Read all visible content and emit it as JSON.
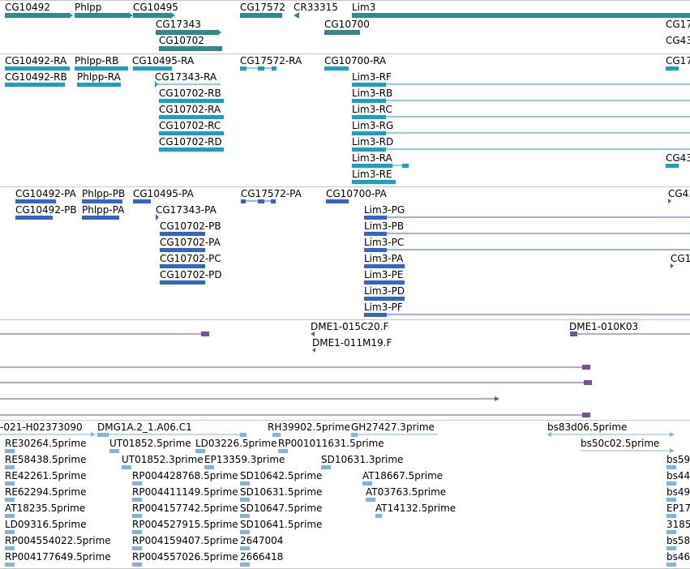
{
  "colors": {
    "gene": "#2e8b8b",
    "transcript": "#19a1c3",
    "protein": "#3366cc",
    "clone": "#7a4fa0",
    "est": "#7eb6dc",
    "rule": "#c8c8c8"
  },
  "tracks": {
    "genes": {
      "labels": [
        "CG10492",
        "Phlpp",
        "CG10495",
        "CG17572",
        "CR33315",
        "Lim3",
        "CG17343",
        "CG10700",
        "CG10702",
        "CG17",
        "CG43"
      ]
    },
    "transcripts": {
      "labels": [
        "CG10492-RA",
        "Phlpp-RB",
        "CG10495-RA",
        "CG17572-RA",
        "CG10700-RA",
        "CG17",
        "CG10492-RB",
        "Phlpp-RA",
        "CG17343-RA",
        "Lim3-RF",
        "CG10702-RB",
        "Lim3-RB",
        "CG10702-RA",
        "Lim3-RC",
        "CG10702-RC",
        "Lim3-RG",
        "CG10702-RD",
        "Lim3-RD",
        "Lim3-RA",
        "CG43",
        "Lim3-RE"
      ]
    },
    "proteins": {
      "labels": [
        "CG10492-PA",
        "Phlpp-PB",
        "CG10495-PA",
        "CG17572-PA",
        "CG10700-PA",
        "CG43",
        "CG10492-PB",
        "Phlpp-PA",
        "CG17343-PA",
        "Lim3-PG",
        "CG10702-PB",
        "Lim3-PB",
        "CG10702-PA",
        "Lim3-PC",
        "CG10702-PC",
        "Lim3-PA",
        "CG1",
        "CG10702-PD",
        "Lim3-PE",
        "Lim3-PD",
        "Lim3-PF"
      ]
    },
    "clones": {
      "labels": [
        "DME1-015C20.F",
        "DME1-010K03",
        "DME1-011M19.F"
      ]
    },
    "ests": {
      "labels": [
        "-021-H02373090",
        "DMG1A.2_1.A06.C1",
        "RH39902.5prime",
        "GH27427.3prime",
        "bs83d06.5prime",
        "RE30264.5prime",
        "UT01852.5prime",
        "LD03226.5prime",
        "RP001011631.5prime",
        "bs50c02.5prime",
        "RE58438.5prime",
        "UT01852.3prime",
        "EP13359.3prime",
        "SD10631.3prime",
        "bs59",
        "RE42261.5prime",
        "RP004428768.5prime",
        "SD10642.5prime",
        "AT18667.5prime",
        "bs44",
        "RE62294.5prime",
        "RP004411149.5prime",
        "SD10631.5prime",
        "AT03763.5prime",
        "bs49",
        "AT18235.5prime",
        "RP004157742.5prime",
        "SD10647.5prime",
        "AT14132.5prime",
        "EP17",
        "LD09316.5prime",
        "RP004527915.5prime",
        "SD10641.5prime",
        "3185",
        "RP004554022.5prime",
        "RP004159407.5prime",
        "2647004",
        "bs58",
        "RP004177649.5prime",
        "RP004557026.5prime",
        "2666418",
        "bs46"
      ]
    }
  }
}
